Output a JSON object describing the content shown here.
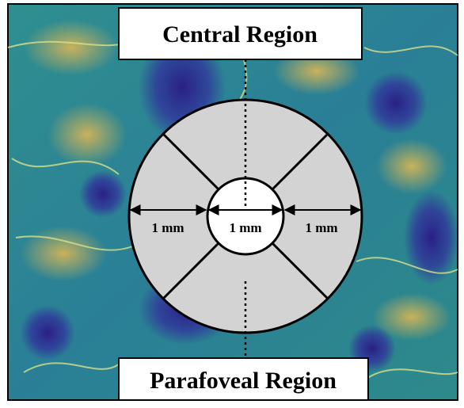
{
  "labels": {
    "top": "Central Region",
    "bottom": "Parafoveal Region"
  },
  "measurements": [
    "1 mm",
    "1 mm",
    "1 mm"
  ]
}
